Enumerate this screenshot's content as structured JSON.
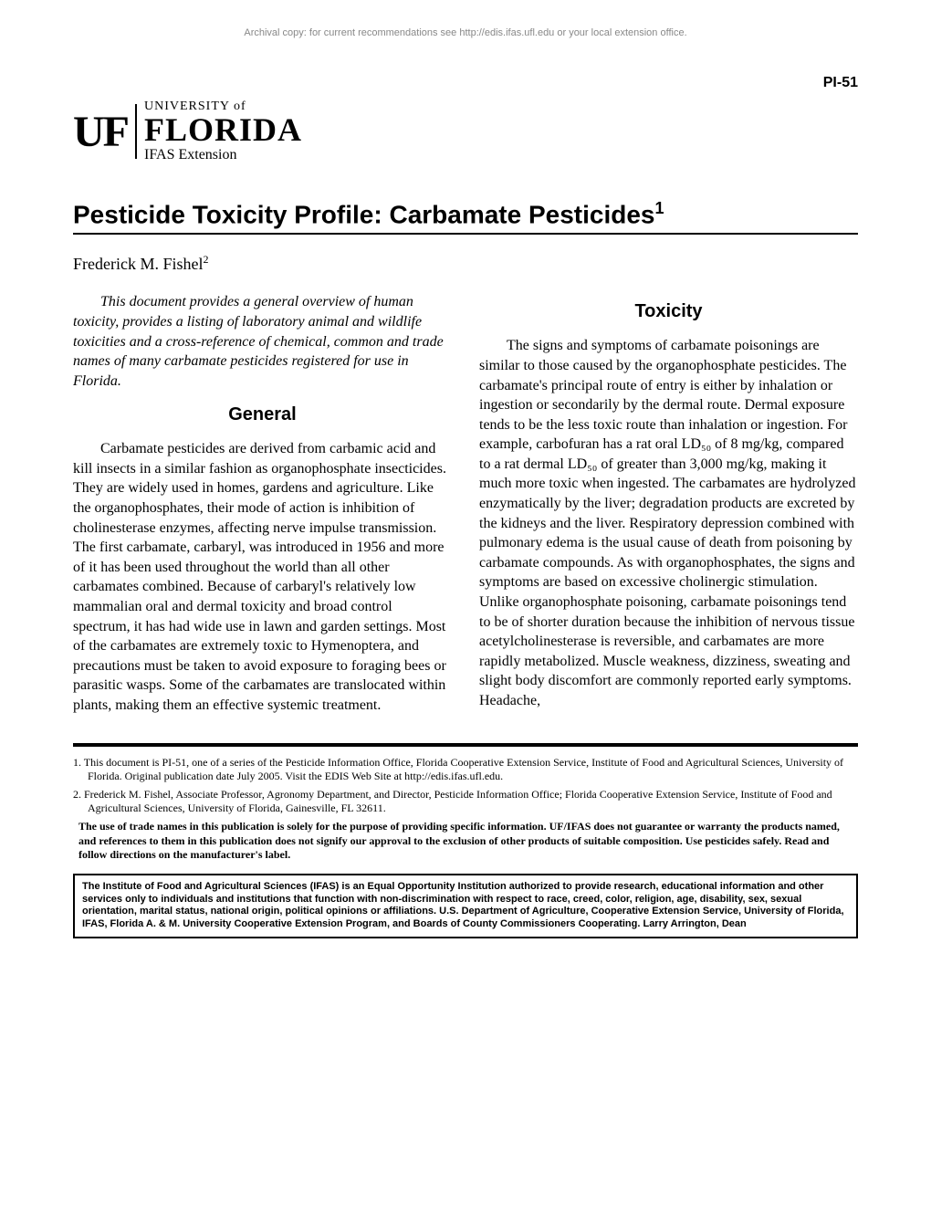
{
  "archival_note": "Archival copy: for current recommendations see http://edis.ifas.ufl.edu or your local extension office.",
  "doc_id": "PI-51",
  "logo": {
    "uf": "UF",
    "university_of": "UNIVERSITY of",
    "florida": "FLORIDA",
    "ifas": "IFAS Extension"
  },
  "title": "Pesticide Toxicity Profile: Carbamate Pesticides",
  "title_sup": "1",
  "author": "Frederick M. Fishel",
  "author_sup": "2",
  "intro": "This document provides a general overview of human toxicity, provides a listing of laboratory animal and wildlife toxicities and a cross-reference of chemical, common and trade names of many carbamate pesticides registered for use in Florida.",
  "sections": {
    "general": {
      "heading": "General",
      "text": "Carbamate pesticides are derived from carbamic acid and kill insects in a similar fashion as organophosphate insecticides. They are widely used in homes, gardens and agriculture. Like the organophosphates, their mode of action is inhibition of cholinesterase enzymes, affecting nerve impulse transmission. The first carbamate, carbaryl, was introduced in 1956 and more of it has been used throughout the world than all other carbamates combined. Because of carbaryl's relatively low mammalian oral and dermal toxicity and broad control spectrum, it has had wide use in lawn and garden settings. Most of the carbamates are extremely toxic to Hymenoptera, and precautions must be taken to avoid exposure to foraging bees or parasitic wasps. Some of the carbamates are translocated within plants, making them an effective systemic treatment."
    },
    "toxicity": {
      "heading": "Toxicity",
      "text": "The signs and symptoms of carbamate poisonings are similar to those caused by the organophosphate pesticides. The carbamate's principal route of entry is either by inhalation or ingestion or secondarily by the dermal route. Dermal exposure tends to be the less toxic route than inhalation or ingestion. For example, carbofuran has a rat oral LD₅₀ of 8 mg/kg, compared to a rat dermal LD₅₀ of greater than 3,000 mg/kg, making it much more toxic when ingested. The carbamates are hydrolyzed enzymatically by the liver; degradation products are excreted by the kidneys and the liver. Respiratory depression combined with pulmonary edema is the usual cause of death from poisoning by carbamate compounds. As with organophosphates, the signs and symptoms are based on excessive cholinergic stimulation. Unlike organophosphate poisoning, carbamate poisonings tend to be of shorter duration because the inhibition of nervous tissue acetylcholinesterase is reversible, and carbamates are more rapidly metabolized. Muscle weakness, dizziness, sweating and slight body discomfort are commonly reported early symptoms. Headache,"
    }
  },
  "footnotes": [
    "1. This document is PI-51, one of a series of the Pesticide Information Office, Florida Cooperative Extension Service, Institute of Food and Agricultural Sciences, University of Florida. Original publication date July 2005. Visit the EDIS Web Site at http://edis.ifas.ufl.edu.",
    "2. Frederick M. Fishel, Associate Professor, Agronomy Department, and Director, Pesticide Information Office; Florida Cooperative Extension Service, Institute of Food and Agricultural Sciences, University of Florida, Gainesville, FL 32611."
  ],
  "disclaimer": "The use of trade names in this publication is solely for the purpose of providing specific information. UF/IFAS does not guarantee or warranty the products named, and references to them in this publication does not signify our approval to the exclusion of other products of suitable composition. Use pesticides safely. Read and follow directions on the manufacturer's label.",
  "eo_statement": "The Institute of Food and Agricultural Sciences (IFAS) is an Equal Opportunity Institution authorized to provide research, educational information and other services only to individuals and institutions that function with non-discrimination with respect to race, creed, color, religion, age, disability, sex, sexual orientation, marital status, national origin, political opinions or affiliations. U.S. Department of Agriculture, Cooperative Extension Service, University of Florida, IFAS, Florida A. & M. University Cooperative Extension Program, and Boards of County Commissioners Cooperating. Larry Arrington, Dean",
  "colors": {
    "text": "#000000",
    "background": "#ffffff",
    "archival": "#888888"
  },
  "fonts": {
    "body": "Times New Roman, serif",
    "heading": "Arial, sans-serif",
    "body_size_pt": 12,
    "title_size_pt": 21,
    "section_heading_pt": 15,
    "footnote_size_pt": 9
  }
}
